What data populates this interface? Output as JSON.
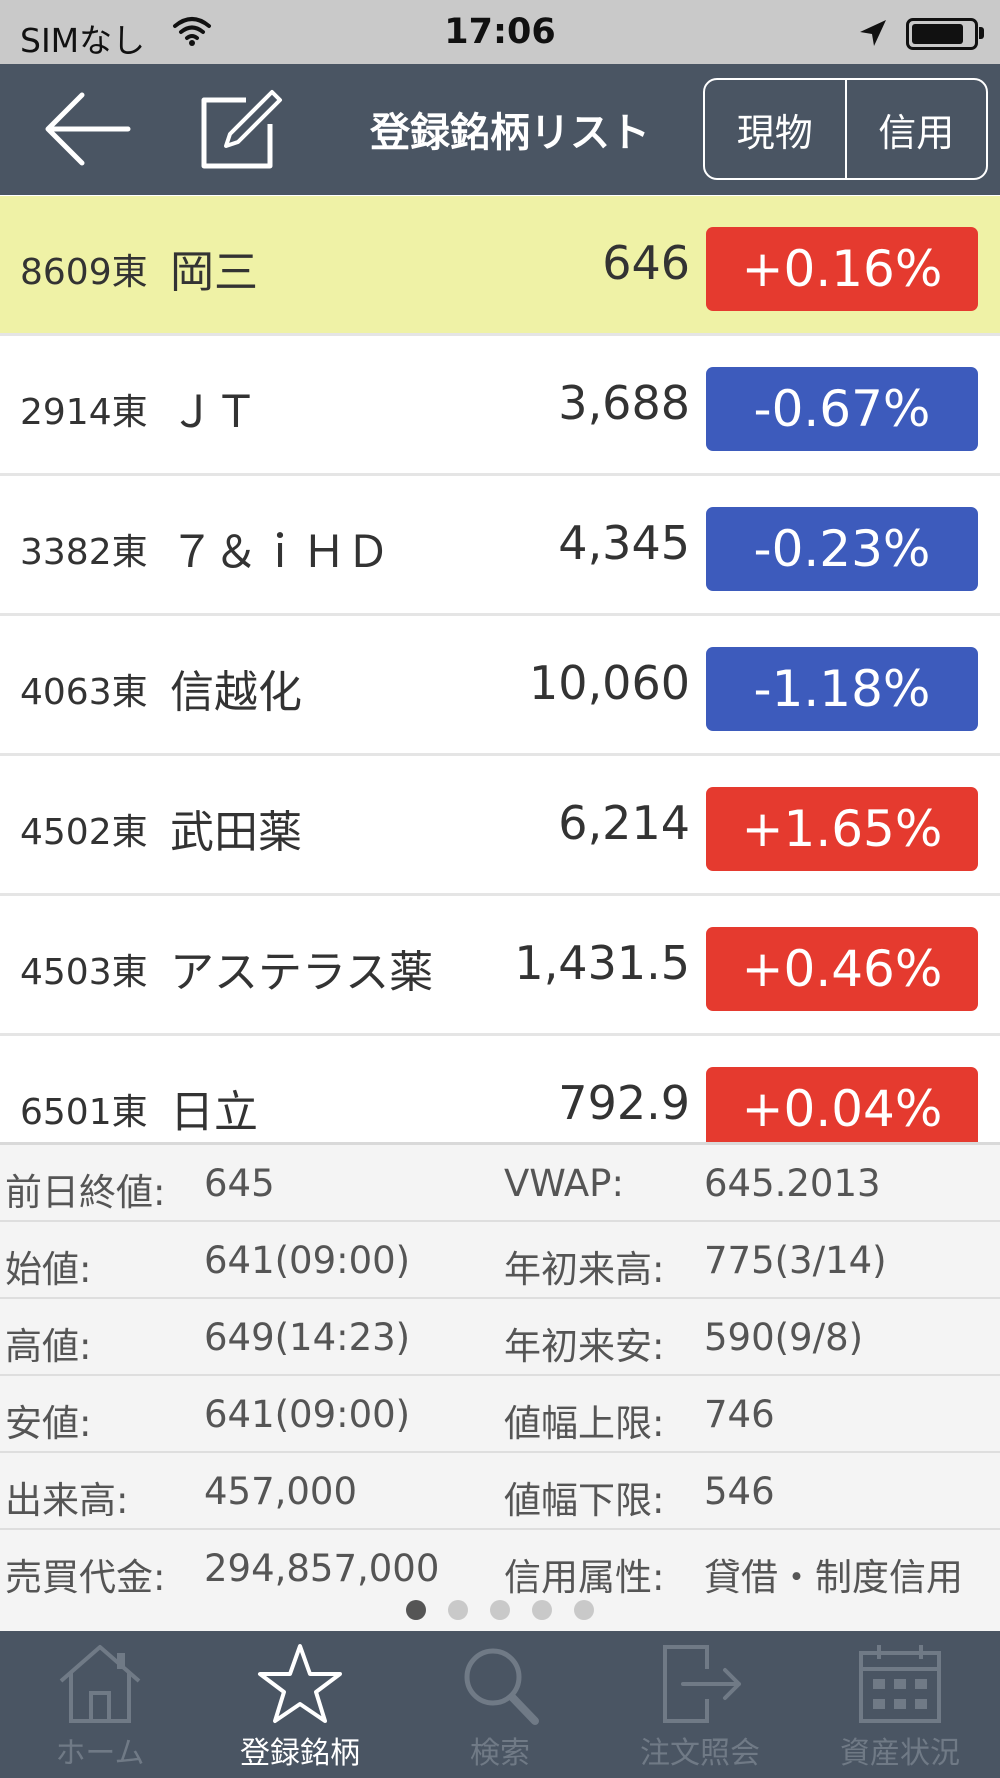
{
  "status_bar": {
    "carrier": "SIMなし",
    "time": "17:06",
    "battery_level": 0.85
  },
  "nav": {
    "title": "登録銘柄リスト",
    "segments": [
      "現物",
      "信用"
    ]
  },
  "stocks": [
    {
      "code": "8609東",
      "name": "岡三",
      "price": "646",
      "change": "+0.16%",
      "direction": "up",
      "selected": true
    },
    {
      "code": "2914東",
      "name": "ＪＴ",
      "price": "3,688",
      "change": "-0.67%",
      "direction": "down",
      "selected": false
    },
    {
      "code": "3382東",
      "name": "７＆ｉＨＤ",
      "price": "4,345",
      "change": "-0.23%",
      "direction": "down",
      "selected": false
    },
    {
      "code": "4063東",
      "name": "信越化",
      "price": "10,060",
      "change": "-1.18%",
      "direction": "down",
      "selected": false
    },
    {
      "code": "4502東",
      "name": "武田薬",
      "price": "6,214",
      "change": "+1.65%",
      "direction": "up",
      "selected": false
    },
    {
      "code": "4503東",
      "name": "アステラス薬",
      "price": "1,431.5",
      "change": "+0.46%",
      "direction": "up",
      "selected": false
    },
    {
      "code": "6501東",
      "name": "日立",
      "price": "792.9",
      "change": "+0.04%",
      "direction": "up",
      "selected": false
    }
  ],
  "details": [
    {
      "label1": "前日終値:",
      "value1": "645",
      "label2": "VWAP:",
      "value2": "645.2013"
    },
    {
      "label1": "始値:",
      "value1": "641(09:00)",
      "label2": "年初来高:",
      "value2": "775(3/14)"
    },
    {
      "label1": "高値:",
      "value1": "649(14:23)",
      "label2": "年初来安:",
      "value2": "590(9/8)"
    },
    {
      "label1": "安値:",
      "value1": "641(09:00)",
      "label2": "値幅上限:",
      "value2": "746"
    },
    {
      "label1": "出来高:",
      "value1": "457,000",
      "label2": "値幅下限:",
      "value2": "546"
    },
    {
      "label1": "売買代金:",
      "value1": "294,857,000",
      "label2": "信用属性:",
      "value2": "貸借・制度信用"
    }
  ],
  "pager": {
    "count": 5,
    "active": 0
  },
  "tabs": [
    {
      "label": "ホーム",
      "icon": "home-icon",
      "active": false
    },
    {
      "label": "登録銘柄",
      "icon": "star-icon",
      "active": true
    },
    {
      "label": "検索",
      "icon": "search-icon",
      "active": false
    },
    {
      "label": "注文照会",
      "icon": "order-inquiry-icon",
      "active": false
    },
    {
      "label": "資産状況",
      "icon": "calendar-icon",
      "active": false
    }
  ],
  "colors": {
    "up": "#e53a2f",
    "down": "#3d5bbc",
    "selected_row": "#eff2a6",
    "navbar": "#4a5563"
  }
}
